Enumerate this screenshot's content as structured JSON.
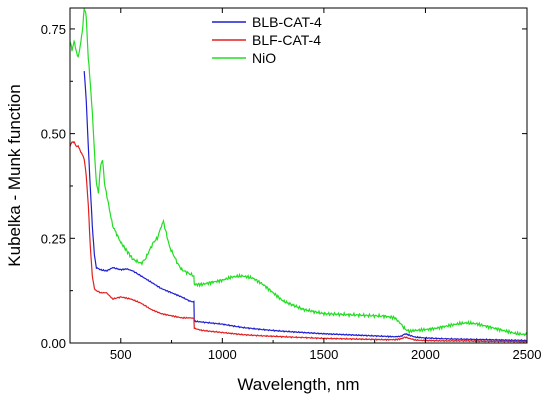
{
  "chart_data": {
    "type": "line",
    "title": "",
    "xlabel": "Wavelength, nm",
    "ylabel": "Kubelka - Munk function",
    "xlim": [
      250,
      2500
    ],
    "ylim": [
      0,
      0.8
    ],
    "x_ticks": [
      500,
      1000,
      1500,
      2000,
      2500
    ],
    "x_tick_labels": [
      "500",
      "1000",
      "1500",
      "2000",
      "2500"
    ],
    "y_ticks": [
      0,
      0.25,
      0.5,
      0.75
    ],
    "y_tick_labels": [
      "0.00",
      "0.25",
      "0.50",
      "0.75"
    ],
    "grid": false,
    "legend_position": "top-center",
    "series": [
      {
        "name": "BLB-CAT-4",
        "color": "#1f1fd0",
        "x": [
          320,
          330,
          340,
          350,
          360,
          370,
          380,
          400,
          430,
          460,
          500,
          530,
          560,
          600,
          650,
          700,
          750,
          800,
          840,
          860,
          862,
          900,
          1000,
          1100,
          1200,
          1300,
          1400,
          1500,
          1600,
          1700,
          1800,
          1850,
          1880,
          1900,
          1950,
          2000,
          2100,
          2200,
          2300,
          2400,
          2500
        ],
        "y": [
          0.65,
          0.58,
          0.47,
          0.37,
          0.28,
          0.21,
          0.18,
          0.175,
          0.172,
          0.18,
          0.175,
          0.177,
          0.172,
          0.16,
          0.145,
          0.13,
          0.12,
          0.11,
          0.1,
          0.098,
          0.052,
          0.05,
          0.045,
          0.037,
          0.032,
          0.028,
          0.025,
          0.022,
          0.02,
          0.018,
          0.016,
          0.015,
          0.016,
          0.022,
          0.014,
          0.012,
          0.01,
          0.009,
          0.008,
          0.007,
          0.006
        ]
      },
      {
        "name": "BLF-CAT-4",
        "color": "#e02020",
        "x": [
          250,
          260,
          270,
          280,
          290,
          300,
          310,
          320,
          330,
          340,
          350,
          360,
          370,
          380,
          400,
          430,
          460,
          500,
          550,
          600,
          650,
          700,
          750,
          800,
          850,
          860,
          862,
          900,
          1000,
          1100,
          1200,
          1300,
          1400,
          1500,
          1600,
          1700,
          1800,
          1850,
          1880,
          1900,
          1950,
          2000,
          2100,
          2200,
          2300,
          2400,
          2500
        ],
        "y": [
          0.47,
          0.48,
          0.48,
          0.47,
          0.47,
          0.46,
          0.45,
          0.44,
          0.4,
          0.33,
          0.23,
          0.16,
          0.13,
          0.125,
          0.12,
          0.12,
          0.105,
          0.11,
          0.105,
          0.095,
          0.08,
          0.07,
          0.065,
          0.06,
          0.06,
          0.058,
          0.035,
          0.03,
          0.025,
          0.02,
          0.017,
          0.015,
          0.013,
          0.011,
          0.01,
          0.009,
          0.008,
          0.008,
          0.01,
          0.014,
          0.007,
          0.006,
          0.005,
          0.005,
          0.004,
          0.004,
          0.003
        ]
      },
      {
        "name": "NiO",
        "color": "#22dd22",
        "x": [
          250,
          260,
          270,
          280,
          290,
          300,
          310,
          320,
          330,
          340,
          350,
          360,
          370,
          380,
          390,
          400,
          410,
          420,
          440,
          460,
          480,
          500,
          530,
          560,
          600,
          620,
          640,
          660,
          680,
          700,
          710,
          720,
          740,
          760,
          780,
          800,
          840,
          860,
          862,
          900,
          950,
          1000,
          1050,
          1100,
          1150,
          1200,
          1250,
          1300,
          1400,
          1500,
          1600,
          1700,
          1800,
          1850,
          1880,
          1900,
          1920,
          1950,
          2000,
          2050,
          2100,
          2150,
          2200,
          2250,
          2300,
          2350,
          2400,
          2450,
          2500
        ],
        "y": [
          0.72,
          0.7,
          0.72,
          0.7,
          0.68,
          0.71,
          0.74,
          0.8,
          0.78,
          0.68,
          0.62,
          0.55,
          0.46,
          0.38,
          0.36,
          0.42,
          0.44,
          0.38,
          0.33,
          0.28,
          0.26,
          0.24,
          0.22,
          0.2,
          0.19,
          0.2,
          0.22,
          0.24,
          0.25,
          0.28,
          0.29,
          0.27,
          0.23,
          0.21,
          0.19,
          0.175,
          0.165,
          0.16,
          0.14,
          0.14,
          0.145,
          0.15,
          0.158,
          0.16,
          0.155,
          0.14,
          0.12,
          0.1,
          0.08,
          0.07,
          0.068,
          0.066,
          0.064,
          0.06,
          0.045,
          0.033,
          0.028,
          0.03,
          0.032,
          0.035,
          0.04,
          0.045,
          0.048,
          0.046,
          0.04,
          0.034,
          0.028,
          0.022,
          0.02
        ]
      }
    ]
  }
}
